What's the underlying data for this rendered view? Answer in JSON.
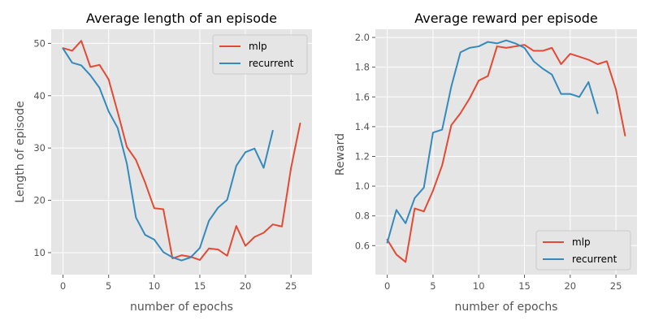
{
  "chart_data": [
    {
      "type": "line",
      "title": "Average length of an episode",
      "xlabel": "number of epochs",
      "ylabel": "Length of episode",
      "xlim": [
        -1.3,
        27.3
      ],
      "ylim": [
        5.8,
        52.7
      ],
      "xticks": [
        0,
        5,
        10,
        15,
        20,
        25
      ],
      "yticks": [
        10,
        20,
        30,
        40,
        50
      ],
      "grid": true,
      "legend_position": "top-right",
      "series": [
        {
          "name": "mlp",
          "color": "#e24a33",
          "x": [
            0,
            1,
            2,
            3,
            4,
            5,
            6,
            7,
            8,
            9,
            10,
            11,
            12,
            13,
            14,
            15,
            16,
            17,
            18,
            19,
            20,
            21,
            22,
            23,
            24,
            25,
            26
          ],
          "y": [
            49.1,
            48.6,
            50.5,
            45.5,
            45.9,
            43.1,
            36.8,
            30.2,
            27.7,
            23.4,
            18.5,
            18.3,
            8.9,
            9.5,
            9.2,
            8.6,
            10.8,
            10.6,
            9.4,
            15.1,
            11.3,
            13.0,
            13.8,
            15.4,
            15.0,
            26.2,
            34.7
          ]
        },
        {
          "name": "recurrent",
          "color": "#348abd",
          "x": [
            0,
            1,
            2,
            3,
            4,
            5,
            6,
            7,
            8,
            9,
            10,
            11,
            12,
            13,
            14,
            15,
            16,
            17,
            18,
            19,
            20,
            21,
            22,
            23
          ],
          "y": [
            49.0,
            46.3,
            45.8,
            43.9,
            41.5,
            37.0,
            33.8,
            27.0,
            16.7,
            13.4,
            12.5,
            10.1,
            9.1,
            8.5,
            9.1,
            10.9,
            16.1,
            18.6,
            20.1,
            26.6,
            29.2,
            29.9,
            26.2,
            33.3
          ]
        }
      ]
    },
    {
      "type": "line",
      "title": "Average reward per episode",
      "xlabel": "number of epochs",
      "ylabel": "Reward",
      "xlim": [
        -1.3,
        27.3
      ],
      "ylim": [
        0.405,
        2.055
      ],
      "xticks": [
        0,
        5,
        10,
        15,
        20,
        25
      ],
      "yticks": [
        0.6,
        0.8,
        1.0,
        1.2,
        1.4,
        1.6,
        1.8,
        2.0
      ],
      "grid": true,
      "legend_position": "bottom-right",
      "series": [
        {
          "name": "mlp",
          "color": "#e24a33",
          "x": [
            0,
            1,
            2,
            3,
            4,
            5,
            6,
            7,
            8,
            9,
            10,
            11,
            12,
            13,
            14,
            15,
            16,
            17,
            18,
            19,
            20,
            21,
            22,
            23,
            24,
            25,
            26
          ],
          "y": [
            0.64,
            0.54,
            0.49,
            0.85,
            0.83,
            0.97,
            1.14,
            1.41,
            1.49,
            1.59,
            1.71,
            1.74,
            1.94,
            1.93,
            1.94,
            1.95,
            1.91,
            1.91,
            1.93,
            1.82,
            1.89,
            1.87,
            1.85,
            1.82,
            1.84,
            1.65,
            1.34
          ]
        },
        {
          "name": "recurrent",
          "color": "#348abd",
          "x": [
            0,
            1,
            2,
            3,
            4,
            5,
            6,
            7,
            8,
            9,
            10,
            11,
            12,
            13,
            14,
            15,
            16,
            17,
            18,
            19,
            20,
            21,
            22,
            23
          ],
          "y": [
            0.62,
            0.84,
            0.75,
            0.92,
            0.99,
            1.36,
            1.38,
            1.67,
            1.9,
            1.93,
            1.94,
            1.97,
            1.96,
            1.98,
            1.96,
            1.93,
            1.84,
            1.79,
            1.75,
            1.62,
            1.62,
            1.6,
            1.7,
            1.49
          ]
        }
      ]
    }
  ]
}
